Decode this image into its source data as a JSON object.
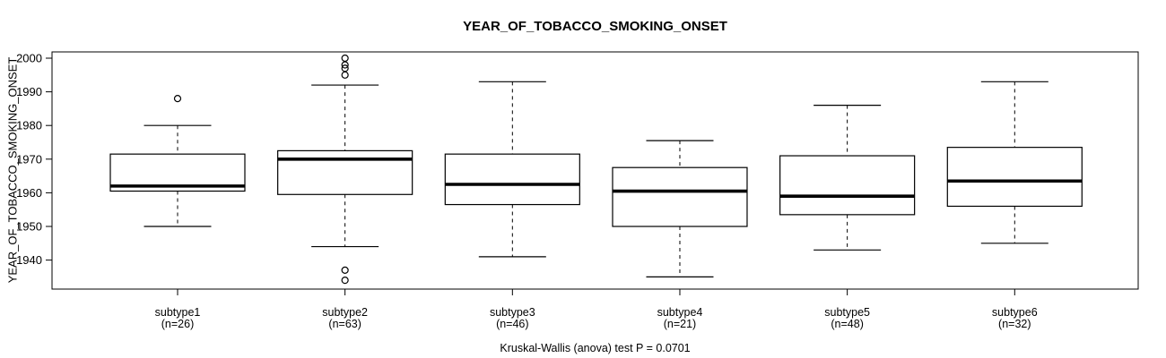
{
  "chart_data": {
    "type": "boxplot",
    "title": "YEAR_OF_TOBACCO_SMOKING_ONSET",
    "ylabel": "YEAR_OF_TOBACCO_SMOKING_ONSET",
    "caption": "Kruskal-Wallis (anova) test P = 0.0701",
    "y_ticks": [
      1940,
      1950,
      1960,
      1970,
      1980,
      1990,
      2000
    ],
    "ylim": [
      1931,
      2002
    ],
    "grid": false,
    "legend": "none",
    "colors": {
      "line": "#000000",
      "box_fill": "#ffffff",
      "background": "#ffffff"
    },
    "groups": [
      {
        "label": "subtype1",
        "n_label": "(n=26)",
        "n": 26,
        "whisker_low": 1950,
        "q1": 1960.5,
        "median": 1962,
        "q3": 1971.5,
        "whisker_high": 1980,
        "outliers": [
          1988
        ]
      },
      {
        "label": "subtype2",
        "n_label": "(n=63)",
        "n": 63,
        "whisker_low": 1944,
        "q1": 1959.5,
        "median": 1970,
        "q3": 1972.5,
        "whisker_high": 1992,
        "outliers": [
          2000,
          1998,
          1997,
          1995,
          1937,
          1934
        ]
      },
      {
        "label": "subtype3",
        "n_label": "(n=46)",
        "n": 46,
        "whisker_low": 1941,
        "q1": 1956.5,
        "median": 1962.5,
        "q3": 1971.5,
        "whisker_high": 1993,
        "outliers": []
      },
      {
        "label": "subtype4",
        "n_label": "(n=21)",
        "n": 21,
        "whisker_low": 1935,
        "q1": 1950,
        "median": 1960.5,
        "q3": 1967.5,
        "whisker_high": 1975.5,
        "outliers": []
      },
      {
        "label": "subtype5",
        "n_label": "(n=48)",
        "n": 48,
        "whisker_low": 1943,
        "q1": 1953.5,
        "median": 1959,
        "q3": 1971,
        "whisker_high": 1986,
        "outliers": []
      },
      {
        "label": "subtype6",
        "n_label": "(n=32)",
        "n": 32,
        "whisker_low": 1945,
        "q1": 1956,
        "median": 1963.5,
        "q3": 1973.5,
        "whisker_high": 1993,
        "outliers": []
      }
    ]
  }
}
